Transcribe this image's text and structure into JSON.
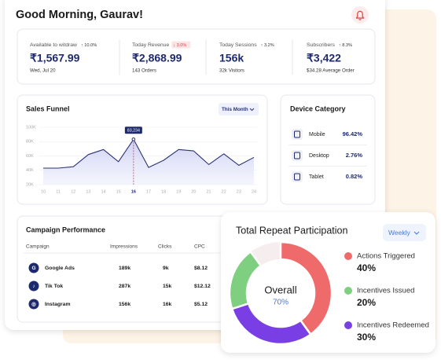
{
  "header": {
    "greeting": "Good Morning, Gaurav!"
  },
  "stats": [
    {
      "label": "Available to witdraw",
      "change": "↑ 10.0%",
      "value": "₹1,567.99",
      "sub": "Wed, Jul 20"
    },
    {
      "label": "Today Revenue",
      "change": "↓ 3.0%",
      "value": "₹2,868.99",
      "sub": "143 Orders"
    },
    {
      "label": "Today Sessions",
      "change": "↑ 3.2%",
      "value": "156k",
      "sub": "32k Visitors"
    },
    {
      "label": "Subscribers",
      "change": "↑ 8.3%",
      "value": "₹3,422",
      "sub": "$34.28 Average Order"
    }
  ],
  "device_category": {
    "title": "Device Category",
    "items": [
      {
        "label": "Mobile",
        "value": "96.42%"
      },
      {
        "label": "Desktop",
        "value": "2.76%"
      },
      {
        "label": "Tablet",
        "value": "0.82%"
      }
    ]
  },
  "campaign": {
    "title": "Campaign Performance",
    "columns": [
      "Campaign",
      "Impressions",
      "Clicks",
      "CPC"
    ],
    "rows": [
      [
        "Google Ads",
        "189k",
        "9k",
        "$8.12"
      ],
      [
        "Tik Tok",
        "287k",
        "15k",
        "$12.12"
      ],
      [
        "Instagram",
        "156k",
        "16k",
        "$5.12"
      ]
    ]
  },
  "chart_data": [
    {
      "type": "line",
      "title": "Sales Funnel",
      "filter": "This Month",
      "x": [
        10,
        11,
        12,
        13,
        14,
        15,
        16,
        17,
        18,
        19,
        20,
        21,
        22,
        23,
        24
      ],
      "values": [
        43000,
        43000,
        45000,
        62000,
        69000,
        52000,
        83234,
        44000,
        54000,
        69000,
        67000,
        48000,
        63000,
        47000,
        58000
      ],
      "value_labels": [
        null,
        null,
        null,
        null,
        null,
        null,
        "83,234",
        null,
        null,
        null,
        null,
        null,
        null,
        null,
        null
      ],
      "color": "#2a3372",
      "xlim": [
        10,
        24
      ],
      "xticks": [
        10,
        11,
        12,
        13,
        14,
        15,
        16,
        17,
        18,
        19,
        20,
        21,
        22,
        23,
        24
      ],
      "ylim": [
        20000,
        100000
      ],
      "yticks": [
        {
          "value": 100000,
          "label": "100K"
        },
        {
          "value": 80000,
          "label": "80K"
        },
        {
          "value": 60000,
          "label": "60K"
        },
        {
          "value": 40000,
          "label": "40K"
        },
        {
          "value": 20000,
          "label": "20K"
        }
      ],
      "grid": true
    },
    {
      "type": "pie",
      "title": "Total Repeat Participation",
      "filter": "Weekly",
      "center_label": "Overall",
      "center_value": "70%",
      "categories": [
        "Actions Triggered",
        "Incentives Issued",
        "Incentives Redeemed"
      ],
      "values": [
        40,
        20,
        30
      ],
      "value_labels": [
        "40%",
        "20%",
        "30%"
      ],
      "colors": [
        "#ef6b6b",
        "#7fcf80",
        "#7a3fe4"
      ]
    }
  ]
}
